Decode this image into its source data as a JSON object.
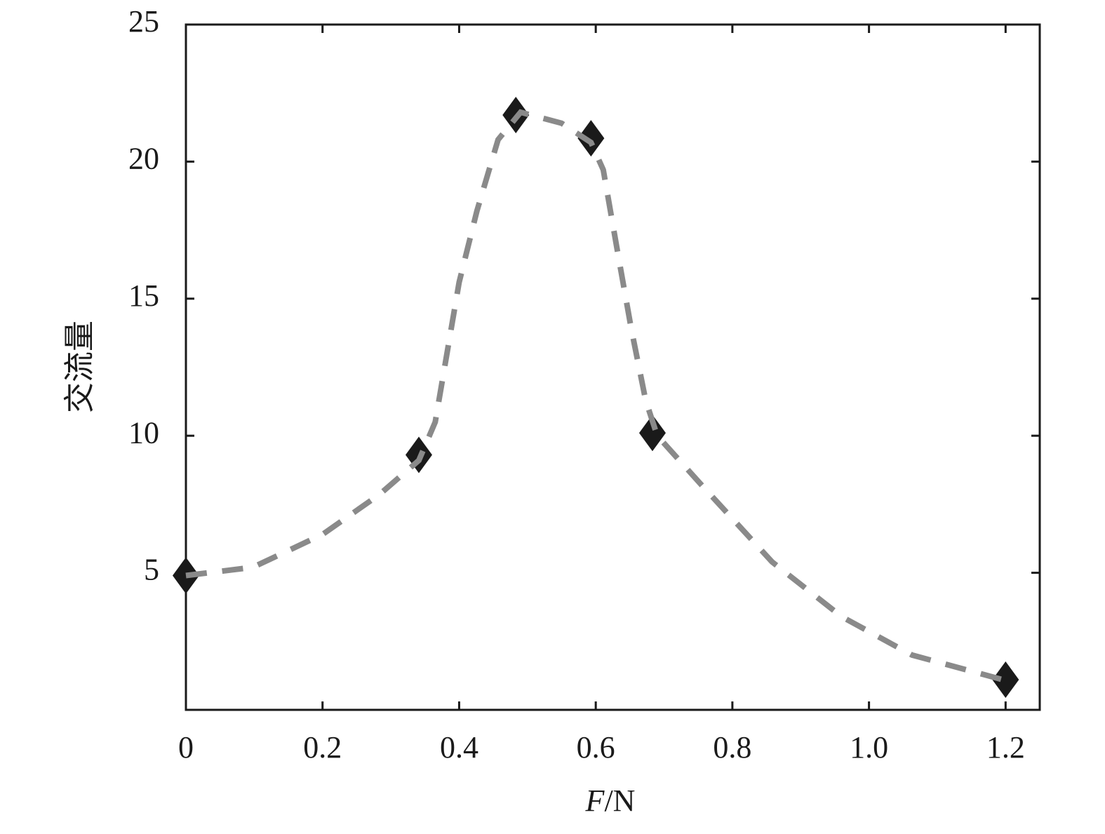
{
  "chart_data": {
    "type": "scatter",
    "xlabel": [
      "F",
      "/N"
    ],
    "ylabel": "交流量",
    "xlim": [
      0,
      1.25
    ],
    "ylim": [
      0,
      25
    ],
    "xticks": [
      0,
      0.2,
      0.4,
      0.6,
      0.8,
      {
        "value": 1,
        "label": "1.0"
      },
      1.2
    ],
    "yticks": [
      5,
      10,
      15,
      20,
      25
    ],
    "series": [
      {
        "x": [
          0,
          0.341,
          0.483,
          0.593,
          0.683,
          1.2
        ],
        "values": [
          4.9,
          9.3,
          21.7,
          20.85,
          10.1,
          1.1
        ],
        "color": "#1a1a1a",
        "marker": "diamond"
      },
      {
        "x": [
          0,
          0.098,
          0.2,
          0.283,
          0.341,
          0.365,
          0.4,
          0.426,
          0.457,
          0.49,
          0.55,
          0.593,
          0.611,
          0.632,
          0.652,
          0.673,
          0.69,
          0.755,
          0.858,
          0.96,
          1.063,
          1.2
        ],
        "values": [
          4.9,
          5.2,
          6.4,
          7.85,
          9.1,
          10.5,
          15.6,
          18.2,
          20.8,
          21.8,
          21.4,
          20.7,
          19.7,
          16.7,
          13.9,
          11.3,
          10.0,
          8.2,
          5.4,
          3.4,
          2.0,
          1.07
        ],
        "color": "#8a8a8a",
        "dashed": true,
        "line": true
      }
    ]
  }
}
